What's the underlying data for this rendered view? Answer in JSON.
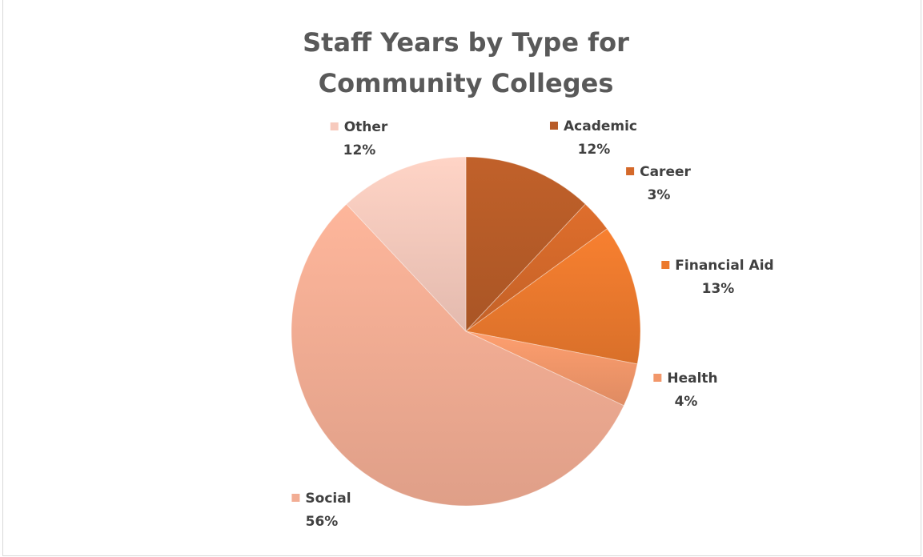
{
  "chart_data": {
    "type": "pie",
    "title_lines": [
      "Staff Years by Type for",
      "Community Colleges"
    ],
    "legend": "none",
    "slices": [
      {
        "label": "Academic",
        "value": 12,
        "value_label": "12%",
        "color": "#b85c28"
      },
      {
        "label": "Career",
        "value": 3,
        "value_label": "3%",
        "color": "#d4692a"
      },
      {
        "label": "Financial Aid",
        "value": 13,
        "value_label": "13%",
        "color": "#ec7a2e"
      },
      {
        "label": "Health",
        "value": 4,
        "value_label": "4%",
        "color": "#f2976a"
      },
      {
        "label": "Social",
        "value": 56,
        "value_label": "56%",
        "color": "#f2ad94"
      },
      {
        "label": "Other",
        "value": 12,
        "value_label": "12%",
        "color": "#f7cabd"
      }
    ]
  }
}
